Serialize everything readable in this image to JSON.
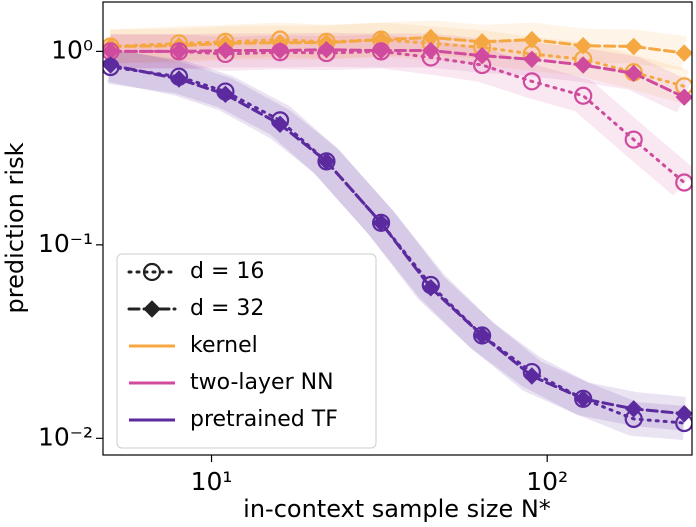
{
  "chart_data": {
    "type": "line",
    "xlabel": "in-context sample size N*",
    "ylabel": "prediction risk",
    "x": [
      5,
      8,
      11,
      16,
      22,
      32,
      45,
      64,
      90,
      128,
      181,
      256
    ],
    "xlim": [
      4.75,
      270
    ],
    "ylim": [
      0.0082,
      1.8
    ],
    "xscale": "log",
    "yscale": "log",
    "xticks": [
      {
        "value": 10,
        "label": "10¹"
      },
      {
        "value": 100,
        "label": "10²"
      }
    ],
    "yticks": [
      {
        "value": 0.01,
        "label": "10⁻²"
      },
      {
        "value": 0.1,
        "label": "10⁻¹"
      },
      {
        "value": 1,
        "label": "10⁰"
      }
    ],
    "legend_position": "lower left",
    "legend_d": [
      {
        "label": "d = 16",
        "dash": "dotted",
        "marker": "circle"
      },
      {
        "label": "d = 32",
        "dash": "dashed",
        "marker": "diamond"
      }
    ],
    "series": [
      {
        "name": "kernel",
        "color": "#f5a742",
        "values": [
          [
            1.06,
            1.1,
            1.12,
            1.15,
            1.12,
            1.15,
            1.1,
            1.05,
            0.97,
            0.91,
            0.78,
            0.66
          ],
          [
            1.06,
            1.07,
            1.1,
            1.11,
            1.11,
            1.15,
            1.18,
            1.12,
            1.15,
            1.07,
            1.06,
            0.98
          ]
        ]
      },
      {
        "name": "two-layer NN",
        "color": "#d04a9e",
        "values": [
          [
            1.0,
            1.0,
            0.97,
            0.99,
            0.98,
            1.0,
            0.93,
            0.85,
            0.7,
            0.59,
            0.35,
            0.21
          ],
          [
            1.0,
            1.0,
            1.01,
            1.01,
            1.02,
            1.01,
            1.01,
            0.95,
            0.91,
            0.85,
            0.77,
            0.58
          ]
        ]
      },
      {
        "name": "pretrained TF",
        "color": "#5b2a9e",
        "values": [
          [
            0.83,
            0.74,
            0.62,
            0.44,
            0.27,
            0.13,
            0.062,
            0.034,
            0.022,
            0.016,
            0.0126,
            0.012
          ],
          [
            0.85,
            0.72,
            0.6,
            0.42,
            0.27,
            0.13,
            0.06,
            0.034,
            0.021,
            0.016,
            0.0142,
            0.0134
          ]
        ]
      }
    ]
  }
}
